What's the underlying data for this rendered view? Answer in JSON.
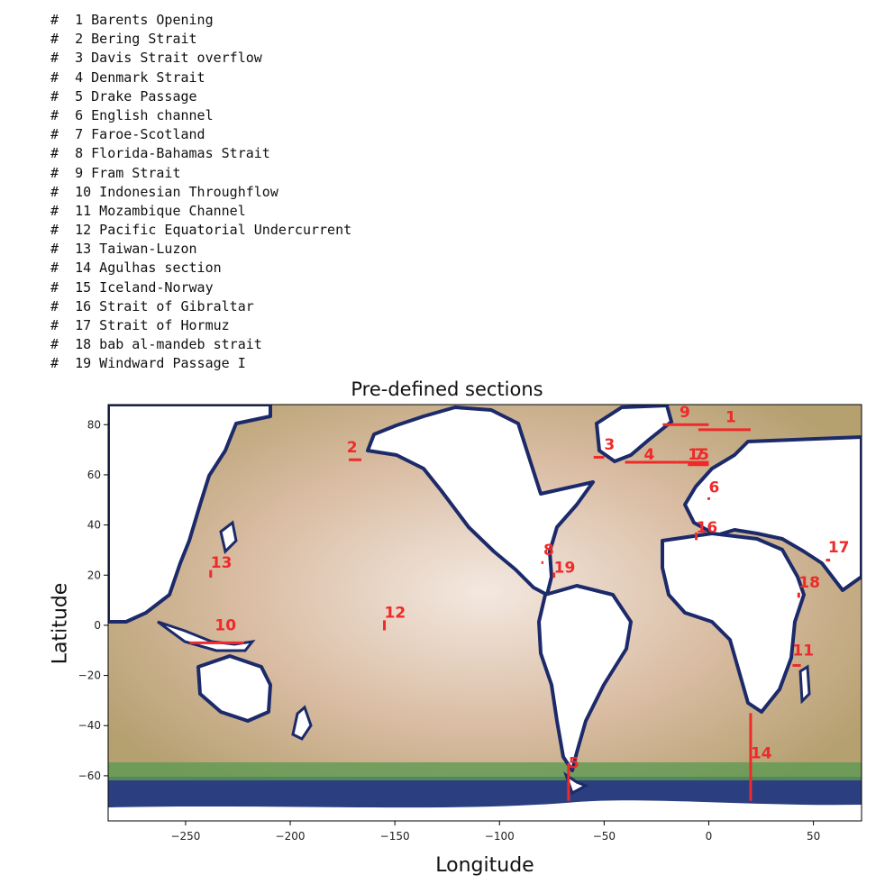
{
  "section_list": [
    "#  1 Barents Opening",
    "#  2 Bering Strait",
    "#  3 Davis Strait overflow",
    "#  4 Denmark Strait",
    "#  5 Drake Passage",
    "#  6 English channel",
    "#  7 Faroe-Scotland",
    "#  8 Florida-Bahamas Strait",
    "#  9 Fram Strait",
    "#  10 Indonesian Throughflow",
    "#  11 Mozambique Channel",
    "#  12 Pacific Equatorial Undercurrent",
    "#  13 Taiwan-Luzon",
    "#  14 Agulhas section",
    "#  15 Iceland-Norway",
    "#  16 Strait of Gibraltar",
    "#  17 Strait of Hormuz",
    "#  18 bab al-mandeb strait",
    "#  19 Windward Passage I"
  ],
  "map": {
    "title": "Pre-defined sections",
    "xlabel": "Longitude",
    "ylabel": "Latitude",
    "xlim": [
      -287,
      73
    ],
    "ylim": [
      -78,
      88
    ],
    "xticks": [
      -250,
      -200,
      -150,
      -100,
      -50,
      0,
      50
    ],
    "yticks": [
      80,
      60,
      40,
      20,
      0,
      -20,
      -40,
      -60
    ],
    "colors": {
      "section": "#ee2a2a",
      "land": "#ffffff",
      "deep": "#efe0d6",
      "mid": "#c8a888",
      "shelf": "#6fa050",
      "coast": "#1c2a6a"
    },
    "sections": [
      {
        "id": "1",
        "x": [
          -5,
          20
        ],
        "y": [
          78,
          78
        ],
        "label_at": [
          8,
          81
        ]
      },
      {
        "id": "2",
        "x": [
          -172,
          -166
        ],
        "y": [
          66,
          66
        ],
        "label_at": [
          -173,
          69
        ]
      },
      {
        "id": "3",
        "x": [
          -55,
          -50
        ],
        "y": [
          67,
          67
        ],
        "label_at": [
          -50,
          70
        ]
      },
      {
        "id": "4",
        "x": [
          -40,
          -15
        ],
        "y": [
          65,
          65
        ],
        "label_at": [
          -31,
          66
        ]
      },
      {
        "id": "5",
        "x": [
          -67,
          -67
        ],
        "y": [
          -55,
          -70
        ],
        "label_at": [
          -67,
          -57
        ]
      },
      {
        "id": "6",
        "x": [
          0,
          0
        ],
        "y": [
          51,
          50
        ],
        "label_at": [
          0,
          53
        ]
      },
      {
        "id": "7",
        "x": [
          -10,
          0
        ],
        "y": [
          64,
          64
        ],
        "label_at": [
          -7,
          66
        ]
      },
      {
        "id": "8",
        "x": [
          -80,
          -79
        ],
        "y": [
          25,
          25
        ],
        "label_at": [
          -79,
          28
        ]
      },
      {
        "id": "9",
        "x": [
          -22,
          0
        ],
        "y": [
          80,
          80
        ],
        "label_at": [
          -14,
          83
        ]
      },
      {
        "id": "10",
        "x": [
          -248,
          -222
        ],
        "y": [
          -7,
          -7
        ],
        "label_at": [
          -236,
          -2
        ]
      },
      {
        "id": "11",
        "x": [
          40,
          44
        ],
        "y": [
          -16,
          -16
        ],
        "label_at": [
          40,
          -12
        ]
      },
      {
        "id": "12",
        "x": [
          -155,
          -155
        ],
        "y": [
          -2,
          2
        ],
        "label_at": [
          -155,
          3
        ]
      },
      {
        "id": "13",
        "x": [
          -238,
          -238
        ],
        "y": [
          19,
          22
        ],
        "label_at": [
          -238,
          23
        ]
      },
      {
        "id": "14",
        "x": [
          20,
          20
        ],
        "y": [
          -35,
          -70
        ],
        "label_at": [
          20,
          -53
        ]
      },
      {
        "id": "15",
        "x": [
          -15,
          0
        ],
        "y": [
          65,
          65
        ],
        "label_at": [
          -10,
          66
        ]
      },
      {
        "id": "16",
        "x": [
          -6,
          -6
        ],
        "y": [
          34,
          37
        ],
        "label_at": [
          -6,
          37
        ]
      },
      {
        "id": "17",
        "x": [
          56,
          58
        ],
        "y": [
          26,
          26
        ],
        "label_at": [
          57,
          29
        ]
      },
      {
        "id": "18",
        "x": [
          43,
          43
        ],
        "y": [
          11,
          13
        ],
        "label_at": [
          43,
          15
        ]
      },
      {
        "id": "19",
        "x": [
          -74,
          -74
        ],
        "y": [
          19,
          21
        ],
        "label_at": [
          -74,
          21
        ]
      }
    ]
  }
}
